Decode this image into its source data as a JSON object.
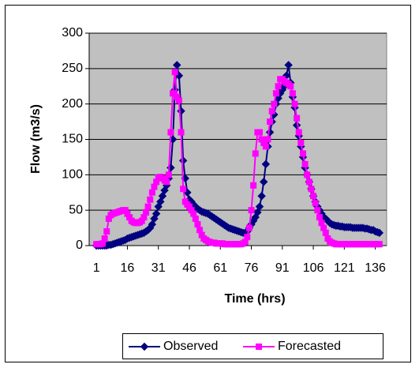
{
  "chart_data": {
    "type": "line",
    "x_label": "Time (hrs)",
    "y_label": "Flow (m3/s)",
    "x": [
      1,
      2,
      3,
      4,
      5,
      6,
      7,
      8,
      9,
      10,
      11,
      12,
      13,
      14,
      15,
      16,
      17,
      18,
      19,
      20,
      21,
      22,
      23,
      24,
      25,
      26,
      27,
      28,
      29,
      30,
      31,
      32,
      33,
      34,
      35,
      36,
      37,
      38,
      39,
      40,
      41,
      42,
      43,
      44,
      45,
      46,
      47,
      48,
      49,
      50,
      51,
      52,
      53,
      54,
      55,
      56,
      57,
      58,
      59,
      60,
      61,
      62,
      63,
      64,
      65,
      66,
      67,
      68,
      69,
      70,
      71,
      72,
      73,
      74,
      75,
      76,
      77,
      78,
      79,
      80,
      81,
      82,
      83,
      84,
      85,
      86,
      87,
      88,
      89,
      90,
      91,
      92,
      93,
      94,
      95,
      96,
      97,
      98,
      99,
      100,
      101,
      102,
      103,
      104,
      105,
      106,
      107,
      108,
      109,
      110,
      111,
      112,
      113,
      114,
      115,
      116,
      117,
      118,
      119,
      120,
      121,
      122,
      123,
      124,
      125,
      126,
      127,
      128,
      129,
      130,
      131,
      132,
      133,
      134,
      135,
      136,
      137,
      138
    ],
    "series": [
      {
        "name": "Observed",
        "color": "#000080",
        "marker": "diamond",
        "values": [
          0,
          0,
          0,
          0,
          0,
          0,
          1,
          1,
          2,
          3,
          4,
          5,
          6,
          7,
          8,
          10,
          11,
          12,
          13,
          14,
          15,
          16,
          17,
          18,
          20,
          22,
          25,
          30,
          38,
          45,
          55,
          62,
          70,
          78,
          85,
          95,
          110,
          150,
          220,
          255,
          240,
          190,
          120,
          95,
          75,
          65,
          62,
          58,
          55,
          52,
          50,
          48,
          47,
          46,
          45,
          43,
          41,
          39,
          37,
          35,
          33,
          31,
          29,
          27,
          25,
          24,
          23,
          22,
          21,
          20,
          19,
          18,
          18,
          20,
          25,
          30,
          35,
          40,
          47,
          55,
          70,
          90,
          115,
          140,
          160,
          175,
          185,
          200,
          208,
          215,
          220,
          225,
          240,
          255,
          230,
          210,
          195,
          170,
          155,
          140,
          125,
          110,
          100,
          90,
          80,
          70,
          62,
          55,
          50,
          45,
          40,
          38,
          35,
          32,
          30,
          29,
          28,
          28,
          27,
          27,
          26,
          26,
          26,
          26,
          25,
          25,
          25,
          25,
          25,
          25,
          24,
          24,
          23,
          22,
          22,
          20,
          19,
          18
        ]
      },
      {
        "name": "Forecasted",
        "color": "#ff00ff",
        "marker": "square",
        "values": [
          2,
          2,
          2,
          3,
          10,
          20,
          38,
          43,
          45,
          46,
          47,
          48,
          49,
          50,
          50,
          45,
          40,
          35,
          33,
          32,
          32,
          33,
          35,
          40,
          47,
          55,
          65,
          75,
          83,
          90,
          96,
          97,
          95,
          92,
          90,
          100,
          160,
          215,
          245,
          210,
          205,
          160,
          80,
          62,
          58,
          55,
          50,
          45,
          38,
          30,
          22,
          15,
          10,
          8,
          6,
          5,
          4,
          4,
          3,
          3,
          3,
          3,
          2,
          2,
          2,
          2,
          2,
          2,
          2,
          2,
          2,
          3,
          5,
          12,
          25,
          50,
          85,
          130,
          160,
          160,
          150,
          145,
          140,
          150,
          175,
          190,
          200,
          215,
          225,
          235,
          235,
          232,
          230,
          228,
          225,
          215,
          200,
          180,
          160,
          145,
          130,
          115,
          100,
          90,
          80,
          70,
          60,
          50,
          40,
          32,
          25,
          18,
          10,
          6,
          4,
          3,
          2,
          2,
          2,
          2,
          2,
          2,
          2,
          2,
          2,
          2,
          2,
          2,
          2,
          2,
          2,
          2,
          2,
          2,
          2,
          2,
          2,
          2
        ]
      }
    ],
    "xlim": [
      -2.5,
      141.5
    ],
    "xticks": [
      1,
      16,
      31,
      46,
      61,
      76,
      91,
      106,
      121,
      136
    ],
    "ylim": [
      0,
      300
    ],
    "yticks": [
      0,
      50,
      100,
      150,
      200,
      250,
      300
    ],
    "grid": true,
    "plot_background": "#c0c0c0",
    "legend": "bottom"
  }
}
